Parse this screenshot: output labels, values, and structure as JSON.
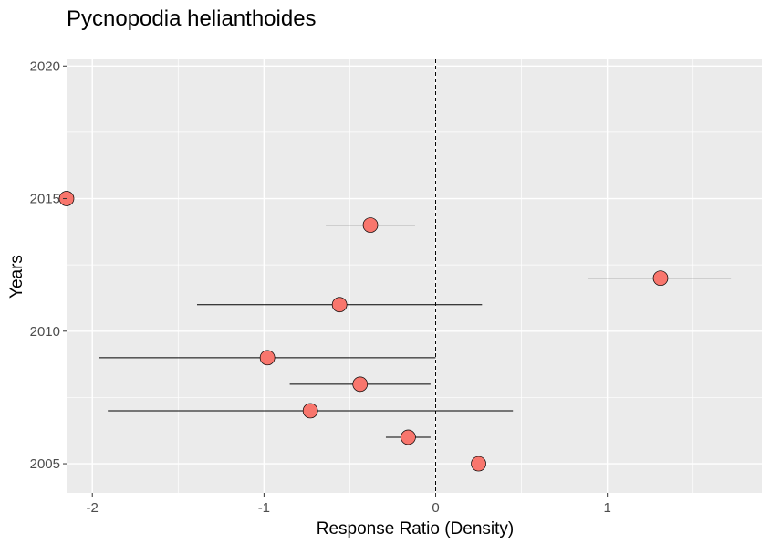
{
  "chart_data": {
    "type": "scatter",
    "title": "Pycnopodia helianthoides",
    "xlabel": "Response Ratio (Density)",
    "ylabel": "Years",
    "xlim": [
      -2.15,
      1.9
    ],
    "ylim": [
      2003.9,
      2020.25
    ],
    "x_ticks": [
      -2,
      -1,
      0,
      1
    ],
    "x_tick_labels": [
      "-2",
      "-1",
      "0",
      "1"
    ],
    "y_ticks": [
      2005,
      2010,
      2015,
      2020
    ],
    "y_tick_labels": [
      "2005",
      "2010",
      "2015",
      "2020"
    ],
    "reference_line": {
      "x": 0,
      "style": "dashed"
    },
    "grid": true,
    "legend": "none",
    "colors": {
      "point_fill": "#f8766d",
      "panel": "#ebebeb",
      "grid": "#ffffff"
    },
    "points": [
      {
        "year": 2005,
        "x": 0.25
      },
      {
        "year": 2006,
        "x": -0.16,
        "lo": -0.29,
        "hi": -0.03
      },
      {
        "year": 2007,
        "x": -0.73,
        "lo": -1.91,
        "hi": 0.45
      },
      {
        "year": 2008,
        "x": -0.44,
        "lo": -0.85,
        "hi": -0.03
      },
      {
        "year": 2009,
        "x": -0.98,
        "lo": -1.96,
        "hi": 0.0
      },
      {
        "year": 2011,
        "x": -0.56,
        "lo": -1.39,
        "hi": 0.27
      },
      {
        "year": 2012,
        "x": 1.31,
        "lo": 0.89,
        "hi": 1.72
      },
      {
        "year": 2014,
        "x": -0.38,
        "lo": -0.64,
        "hi": -0.12
      },
      {
        "year": 2015,
        "x": -2.15
      }
    ]
  }
}
